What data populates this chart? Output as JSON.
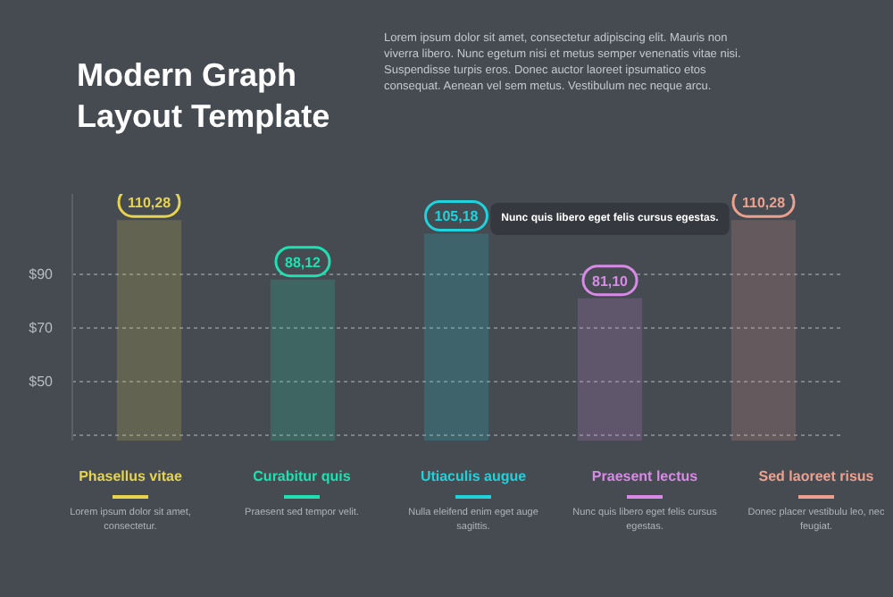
{
  "chart_data": {
    "type": "bar",
    "title": "Modern Graph Layout Template",
    "categories": [
      "Phasellus vitae",
      "Curabitur quis",
      "Utiaculis augue",
      "Praesent lectus",
      "Sed laoreet risus"
    ],
    "values": [
      110.28,
      88.12,
      105.18,
      81.1,
      110.28
    ],
    "value_labels": [
      "110,28",
      "88,12",
      "105,18",
      "81,10",
      "110,28"
    ],
    "colors": [
      "#e6d44e",
      "#1fe0b0",
      "#1fd2dc",
      "#d88ae6",
      "#eea08e"
    ],
    "ylim": [
      28,
      120
    ],
    "yticks": [
      {
        "value": 30,
        "label": null
      },
      {
        "value": 50,
        "label": "$50"
      },
      {
        "value": 70,
        "label": "$70"
      },
      {
        "value": 90,
        "label": "$90"
      }
    ],
    "grid": "y",
    "annotations": [
      "Lorem ipsum dolor sit amet, consectetur adipiscing elit. Mauris non viverra libero. Nunc egetum nisi et metus semper venenatis vitae nisi. Suspendisse turpis eros. Donec auctor laoreet ipsumatico etos consequat. Aenean vel sem metus. Vestibulum nec neque arcu.",
      "Lorem ipsum dolor sit amet, consectetur.",
      "Praesent sed tempor velit.",
      "Nulla eleifend enim eget auge sagittis.",
      "Nunc quis libero eget felis cursus egestas.",
      "Donec placer vestibulu leo, nec feugiat.",
      "Nunc quis libero eget felis cursus egestas."
    ]
  }
}
